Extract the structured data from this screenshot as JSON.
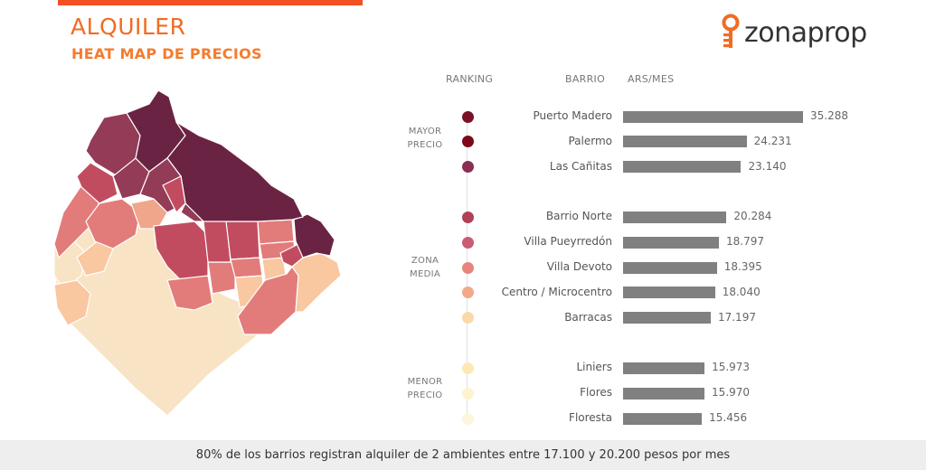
{
  "header": {
    "title": "ALQUILER",
    "subtitle": "HEAT MAP DE PRECIOS",
    "accent_color": "#f25022"
  },
  "logo": {
    "text": "zonaprop",
    "icon": "zonaprop-key-icon",
    "brand_color": "#f26b22"
  },
  "columns": {
    "ranking": "RANKING",
    "barrio": "BARRIO",
    "value": "ARS/MES"
  },
  "groups": [
    {
      "line1": "MAYOR",
      "line2": "PRECIO"
    },
    {
      "line1": "ZONA",
      "line2": "MEDIA"
    },
    {
      "line1": "MENOR",
      "line2": "PRECIO"
    }
  ],
  "chart_data": {
    "type": "bar",
    "orientation": "horizontal",
    "title": "",
    "xlabel": "ARS/MES",
    "ylabel": "BARRIO",
    "xlim": [
      0,
      35288
    ],
    "categories": [
      "Puerto Madero",
      "Palermo",
      "Las Cañitas",
      "Barrio Norte",
      "Villa Pueyrredón",
      "Villa Devoto",
      "Centro / Microcentro",
      "Barracas",
      "Liniers",
      "Flores",
      "Floresta"
    ],
    "values": [
      35288,
      24231,
      23140,
      20284,
      18797,
      18395,
      18040,
      17197,
      15973,
      15970,
      15456
    ],
    "value_labels": [
      "35.288",
      "24.231",
      "23.140",
      "20.284",
      "18.797",
      "18.395",
      "18.040",
      "17.197",
      "15.973",
      "15.970",
      "15.456"
    ],
    "group_index": [
      0,
      0,
      0,
      1,
      1,
      1,
      1,
      1,
      2,
      2,
      2
    ],
    "rank_colors": [
      "#7a1128",
      "#7c0a1a",
      "#8a2f52",
      "#b04158",
      "#c95b72",
      "#e8847f",
      "#f2a98a",
      "#fad9a8",
      "#fce9b5",
      "#fdf3cf",
      "#fdf6dc"
    ],
    "bar_color": "#808080",
    "grid": false,
    "legend": "none"
  },
  "map_colors": {
    "darkest": "#6b2343",
    "dark": "#933b57",
    "mid_dark": "#c24c5f",
    "mid": "#e27c7a",
    "light_mid": "#f0a68a",
    "light": "#f9c7a0",
    "lightest": "#f8e3c4"
  },
  "footer": {
    "text": "80% de los barrios registran alquiler de 2 ambientes entre 17.100 y 20.200 pesos por mes"
  }
}
